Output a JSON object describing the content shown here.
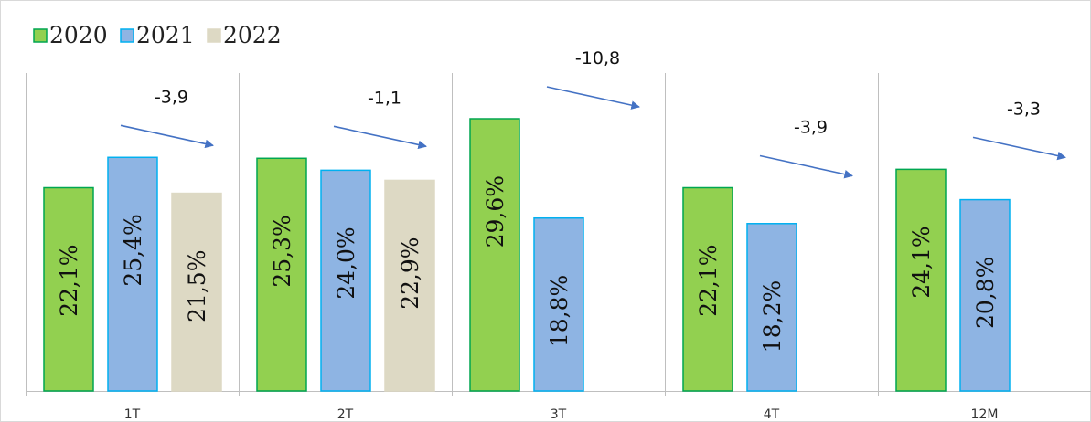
{
  "chart_data": {
    "type": "bar",
    "categories": [
      "1T",
      "2T",
      "3T",
      "4T",
      "12M"
    ],
    "series": [
      {
        "name": "2020",
        "values": [
          22.1,
          25.3,
          29.6,
          22.1,
          24.1
        ],
        "labels": [
          "22,1%",
          "25,3%",
          "29,6%",
          "22,1%",
          "24,1%"
        ],
        "color": "#92d050",
        "border": "#00a651"
      },
      {
        "name": "2021",
        "values": [
          25.4,
          24.0,
          18.8,
          18.2,
          20.8
        ],
        "labels": [
          "25,4%",
          "24,0%",
          "18,8%",
          "18,2%",
          "20,8%"
        ],
        "color": "#8eb4e3",
        "border": "#00b0f0"
      },
      {
        "name": "2022",
        "values": [
          21.5,
          22.9,
          null,
          null,
          null
        ],
        "labels": [
          "21,5%",
          "22,9%",
          "",
          "",
          ""
        ],
        "color": "#ddd9c4",
        "border": "#ddd9c4"
      }
    ],
    "annotations": [
      "-3,9",
      "-1,1",
      "-10,8",
      "-3,9",
      "-3,3"
    ],
    "arrow_color": "#4472c4",
    "ylim": [
      0,
      35
    ],
    "grid": false,
    "legend_position": "top-left"
  }
}
